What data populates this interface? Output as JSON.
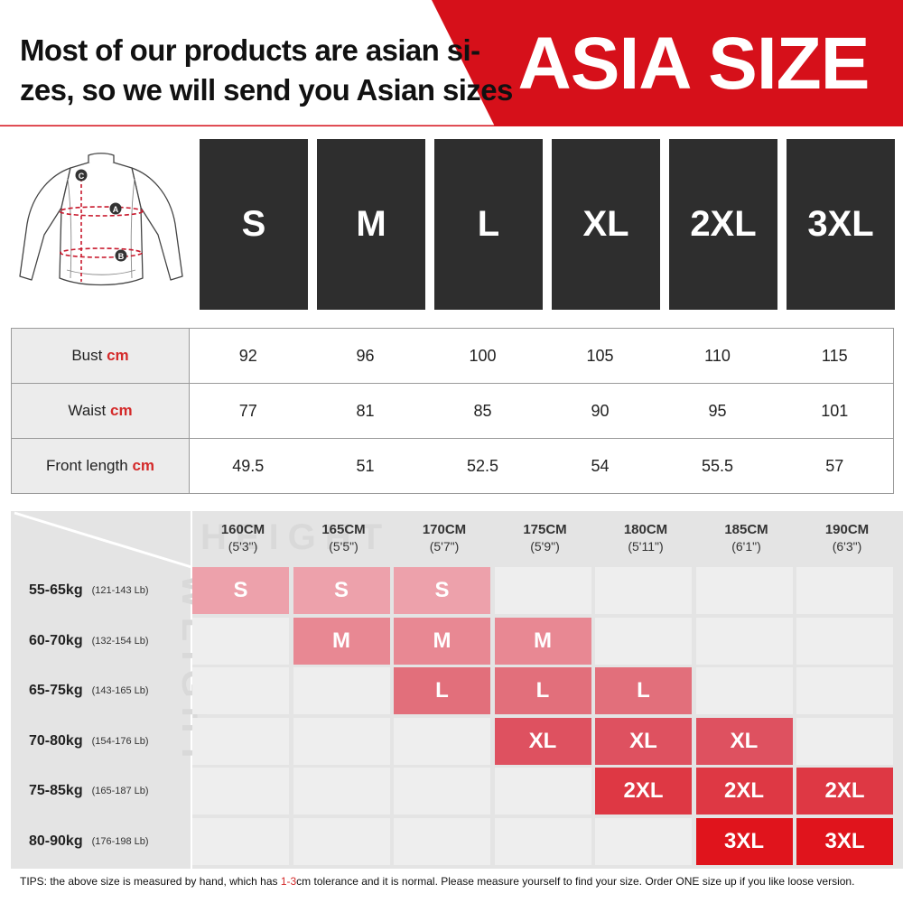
{
  "header": {
    "line1": "Most of our products are asian si-",
    "line2": "zes, so we will send you Asian sizes",
    "banner_title": "ASIA SIZE",
    "banner_color": "#d6101a"
  },
  "jersey": {
    "markers": [
      "C",
      "A",
      "B"
    ]
  },
  "sizes": [
    "S",
    "M",
    "L",
    "XL",
    "2XL",
    "3XL"
  ],
  "measurements": {
    "unit": "cm",
    "rows": [
      {
        "label": "Bust",
        "values": [
          "92",
          "96",
          "100",
          "105",
          "110",
          "115"
        ]
      },
      {
        "label": "Waist",
        "values": [
          "77",
          "81",
          "85",
          "90",
          "95",
          "101"
        ]
      },
      {
        "label": "Front length",
        "values": [
          "49.5",
          "51",
          "52.5",
          "54",
          "55.5",
          "57"
        ]
      }
    ]
  },
  "fit_chart": {
    "watermark_height": "HEIGHT",
    "watermark_weight": "WEIGHT",
    "heights": [
      {
        "cm": "160CM",
        "ft": "(5'3\")"
      },
      {
        "cm": "165CM",
        "ft": "(5'5\")"
      },
      {
        "cm": "170CM",
        "ft": "(5'7\")"
      },
      {
        "cm": "175CM",
        "ft": "(5'9\")"
      },
      {
        "cm": "180CM",
        "ft": "(5'11\")"
      },
      {
        "cm": "185CM",
        "ft": "(6'1\")"
      },
      {
        "cm": "190CM",
        "ft": "(6'3\")"
      }
    ],
    "weights": [
      {
        "kg": "55-65kg",
        "lb": "(121-143 Lb)"
      },
      {
        "kg": "60-70kg",
        "lb": "(132-154 Lb)"
      },
      {
        "kg": "65-75kg",
        "lb": "(143-165 Lb)"
      },
      {
        "kg": "70-80kg",
        "lb": "(154-176 Lb)"
      },
      {
        "kg": "75-85kg",
        "lb": "(165-187 Lb)"
      },
      {
        "kg": "80-90kg",
        "lb": "(176-198 Lb)"
      }
    ],
    "grid": [
      [
        "S",
        "S",
        "S",
        "",
        "",
        "",
        ""
      ],
      [
        "",
        "M",
        "M",
        "M",
        "",
        "",
        ""
      ],
      [
        "",
        "",
        "L",
        "L",
        "L",
        "",
        ""
      ],
      [
        "",
        "",
        "",
        "XL",
        "XL",
        "XL",
        ""
      ],
      [
        "",
        "",
        "",
        "",
        "2XL",
        "2XL",
        "2XL"
      ],
      [
        "",
        "",
        "",
        "",
        "",
        "3XL",
        "3XL"
      ]
    ],
    "size_colors": {
      "S": "#eda1ab",
      "M": "#e88893",
      "L": "#e26f7b",
      "XL": "#de5160",
      "2XL": "#de3844",
      "3XL": "#e0141c"
    }
  },
  "tips": {
    "prefix": "TIPS:  the above size is measured by hand, which has ",
    "highlight": "1-3",
    "suffix": "cm tolerance and it is normal. Please measure yourself to find your size. Order ONE size up if you like loose version."
  }
}
